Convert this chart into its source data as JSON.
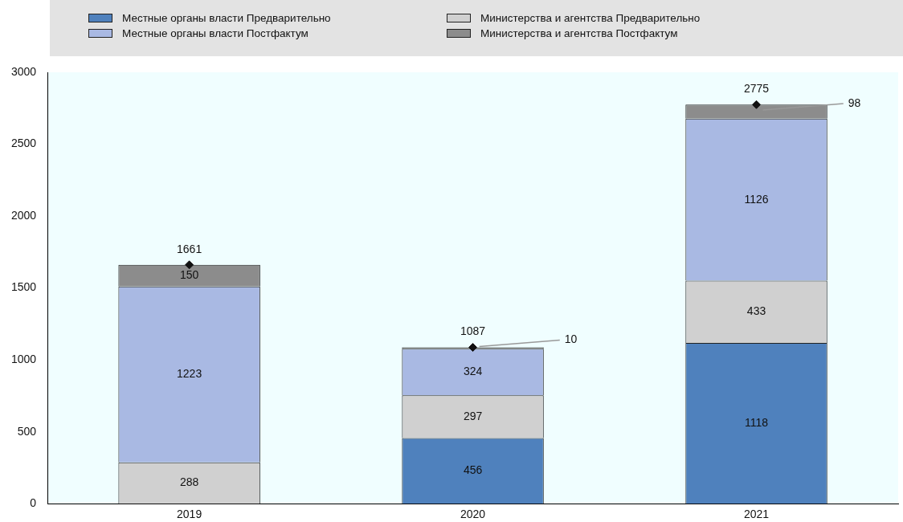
{
  "chart_data": {
    "type": "bar",
    "stacked": true,
    "categories": [
      "2019",
      "2020",
      "2021"
    ],
    "series": [
      {
        "name": "Местные органы власти Предварительно",
        "color": "#4f81bd",
        "values": [
          null,
          456,
          1118
        ]
      },
      {
        "name": "Министерства и агентства Предварительно",
        "color": "#d0d0d0",
        "values": [
          288,
          297,
          433
        ]
      },
      {
        "name": "Местные органы власти Постфактум",
        "color": "#a9b9e3",
        "values": [
          1223,
          324,
          1126
        ]
      },
      {
        "name": "Министерства и агентства Постфактум",
        "color": "#8c8c8c",
        "values": [
          150,
          10,
          98
        ]
      },
      {
        "type": "scatter",
        "marker": "diamond",
        "color": "#111111",
        "values": [
          1661,
          1087,
          2775
        ]
      }
    ],
    "ylim": [
      0,
      3000
    ],
    "yticks": [
      0,
      500,
      1000,
      1500,
      2000,
      2500,
      3000
    ],
    "grid": false,
    "legend": "top",
    "data_labels": true
  }
}
